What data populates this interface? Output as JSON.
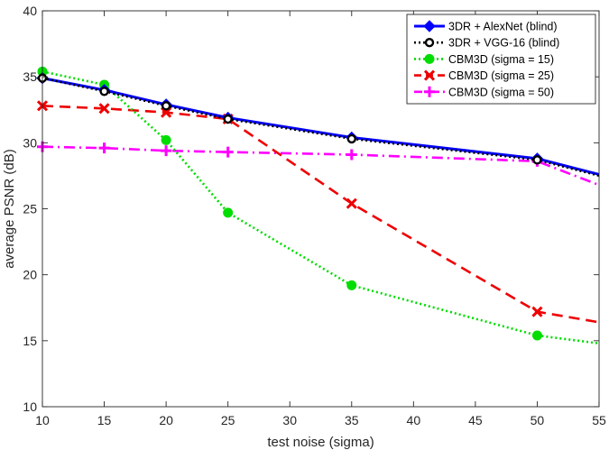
{
  "chart_data": {
    "type": "line",
    "title": "",
    "xlabel": "test noise (sigma)",
    "ylabel": "average PSNR (dB)",
    "xlim": [
      10,
      55
    ],
    "ylim": [
      10,
      40
    ],
    "xticks": [
      10,
      15,
      20,
      25,
      30,
      35,
      40,
      45,
      50,
      55
    ],
    "yticks": [
      10,
      15,
      20,
      25,
      30,
      35,
      40
    ],
    "grid": false,
    "legend_position": "top-right",
    "series": [
      {
        "name": "3DR + AlexNet (blind)",
        "color": "#0000ff",
        "line_style": "solid",
        "marker": "diamond",
        "x": [
          10,
          15,
          20,
          25,
          35,
          50,
          55
        ],
        "y": [
          34.9,
          34.0,
          32.9,
          31.9,
          30.4,
          28.8,
          27.6
        ]
      },
      {
        "name": "3DR + VGG-16 (blind)",
        "color": "#000000",
        "line_style": "dotted",
        "marker": "circle-open",
        "x": [
          10,
          15,
          20,
          25,
          35,
          50,
          55
        ],
        "y": [
          34.9,
          33.9,
          32.8,
          31.8,
          30.3,
          28.7,
          27.5
        ]
      },
      {
        "name": "CBM3D (sigma = 15)",
        "color": "#00dd00",
        "line_style": "dotted",
        "marker": "circle-filled",
        "x": [
          10,
          15,
          20,
          25,
          35,
          50,
          55
        ],
        "y": [
          35.4,
          34.4,
          30.2,
          24.7,
          19.2,
          15.4,
          14.8
        ]
      },
      {
        "name": "CBM3D (sigma = 25)",
        "color": "#ee0000",
        "line_style": "dashed",
        "marker": "x",
        "x": [
          10,
          15,
          20,
          25,
          35,
          50,
          55
        ],
        "y": [
          32.8,
          32.6,
          32.3,
          31.8,
          25.4,
          17.2,
          16.4
        ]
      },
      {
        "name": "CBM3D (sigma = 50)",
        "color": "#ff00ff",
        "line_style": "dashdot",
        "marker": "plus",
        "x": [
          10,
          15,
          20,
          25,
          35,
          50,
          55
        ],
        "y": [
          29.7,
          29.6,
          29.4,
          29.3,
          29.1,
          28.6,
          26.8
        ]
      }
    ]
  }
}
